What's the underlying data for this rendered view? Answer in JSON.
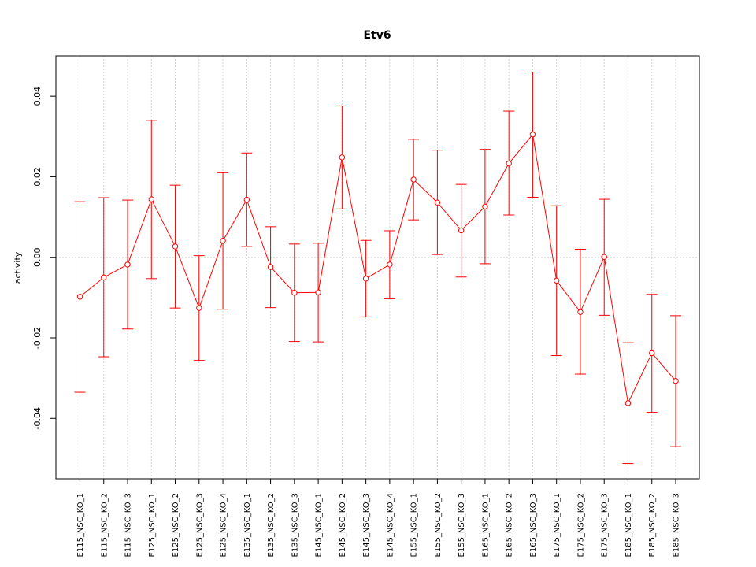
{
  "chart_data": {
    "type": "line",
    "title": "Etv6",
    "xlabel": "",
    "ylabel": "activity",
    "categories": [
      "E115_NSC_KO_1",
      "E115_NSC_KO_2",
      "E115_NSC_KO_3",
      "E125_NSC_KO_1",
      "E125_NSC_KO_2",
      "E125_NSC_KO_3",
      "E125_NSC_KO_4",
      "E135_NSC_KO_1",
      "E135_NSC_KO_2",
      "E135_NSC_KO_3",
      "E145_NSC_KO_1",
      "E145_NSC_KO_2",
      "E145_NSC_KO_3",
      "E145_NSC_KO_4",
      "E155_NSC_KO_1",
      "E155_NSC_KO_2",
      "E155_NSC_KO_3",
      "E165_NSC_KO_1",
      "E165_NSC_KO_2",
      "E165_NSC_KO_3",
      "E175_NSC_KO_1",
      "E175_NSC_KO_2",
      "E175_NSC_KO_3",
      "E185_NSC_KO_1",
      "E185_NSC_KO_2",
      "E185_NSC_KO_3"
    ],
    "values": [
      -0.0098,
      -0.005,
      -0.0018,
      0.0144,
      0.0027,
      -0.0126,
      0.0041,
      0.0143,
      -0.0024,
      -0.0088,
      -0.0087,
      0.0248,
      -0.0053,
      -0.0018,
      0.0193,
      0.0136,
      0.0067,
      0.0126,
      0.0233,
      0.0305,
      -0.0058,
      -0.0136,
      0.0001,
      -0.0362,
      -0.0238,
      -0.0307
    ],
    "upper": [
      0.0138,
      0.0148,
      0.0142,
      0.034,
      0.0179,
      0.0004,
      0.021,
      0.0259,
      0.0076,
      0.0033,
      0.0035,
      0.0376,
      0.0042,
      0.0066,
      0.0293,
      0.0266,
      0.0181,
      0.0268,
      0.0363,
      0.046,
      0.0128,
      0.002,
      0.0144,
      -0.0212,
      -0.0092,
      -0.0145
    ],
    "lower": [
      -0.0335,
      -0.0247,
      -0.0178,
      -0.0053,
      -0.0126,
      -0.0256,
      -0.0129,
      0.0027,
      -0.0125,
      -0.0209,
      -0.021,
      0.012,
      -0.0148,
      -0.0103,
      0.0093,
      0.0007,
      -0.0049,
      -0.0016,
      0.0105,
      0.0149,
      -0.0244,
      -0.029,
      -0.0144,
      -0.0512,
      -0.0385,
      -0.047
    ],
    "ylim": [
      -0.055,
      0.05
    ],
    "yticks": [
      -0.04,
      -0.02,
      0.0,
      0.02,
      0.04
    ],
    "ytick_labels": [
      "-0.04",
      "-0.02",
      "0.00",
      "0.02",
      "0.04"
    ],
    "grid": true,
    "colors": {
      "series": "#ff0000",
      "grid": "#d3d3d3",
      "axis": "#000000"
    }
  }
}
